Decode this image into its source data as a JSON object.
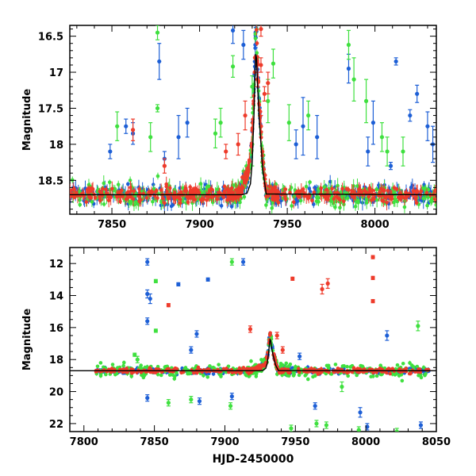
{
  "figure": {
    "background": "#ffffff",
    "series_colors": {
      "blue": "#1d5fd6",
      "green": "#3fe03f",
      "red": "#ee3b2b",
      "model": "#000000"
    }
  },
  "chart_data": [
    {
      "type": "scatter",
      "panel": "top",
      "title": "",
      "xlabel": "",
      "ylabel": "Magnitude",
      "xlim": [
        7826,
        8035
      ],
      "ylim": [
        18.97,
        16.35
      ],
      "y_inverted": true,
      "xticks": [
        7850,
        7900,
        7950,
        8000
      ],
      "yticks": [
        16.5,
        17,
        17.5,
        18,
        18.5
      ],
      "ytick_labels": [
        "16.5",
        "17",
        "17.5",
        "18",
        "18.5"
      ],
      "grid": false,
      "legend": "none",
      "baseline_magnitude": 18.7,
      "series": [
        {
          "color": "blue",
          "baseline_range": [
            7826,
            8035
          ],
          "scatter": 0.13,
          "outliers": [
            [
              7877,
              16.85,
              0.25
            ],
            [
              7919,
              16.42,
              0.18
            ],
            [
              7925,
              16.62,
              0.2
            ],
            [
              7932,
              16.52,
              0.14
            ],
            [
              7985,
              16.95,
              0.2
            ],
            [
              8012,
              16.85,
              0.05
            ],
            [
              8020,
              17.6,
              0.08
            ],
            [
              8024,
              17.3,
              0.12
            ],
            [
              8030,
              17.75,
              0.2
            ],
            [
              8033,
              18.0,
              0.25
            ],
            [
              7858,
              17.75,
              0.1
            ],
            [
              7862,
              17.85,
              0.15
            ],
            [
              7888,
              17.9,
              0.3
            ],
            [
              7893,
              17.7,
              0.2
            ],
            [
              7959,
              17.75,
              0.4
            ],
            [
              7967,
              17.9,
              0.3
            ],
            [
              7999,
              17.7,
              0.3
            ],
            [
              7955,
              18.0,
              0.2
            ],
            [
              7849,
              18.1,
              0.1
            ],
            [
              7880,
              18.2,
              0.1
            ],
            [
              7996,
              18.1,
              0.2
            ],
            [
              8009,
              18.3,
              0.05
            ]
          ]
        },
        {
          "color": "green",
          "baseline_range": [
            7826,
            8035
          ],
          "scatter": 0.15,
          "outliers": [
            [
              7876,
              16.45,
              0.1
            ],
            [
              7919,
              16.92,
              0.15
            ],
            [
              7930,
              17.2,
              0.15
            ],
            [
              7942,
              16.88,
              0.2
            ],
            [
              7939,
              17.4,
              0.3
            ],
            [
              7985,
              16.62,
              0.2
            ],
            [
              7988,
              17.1,
              0.3
            ],
            [
              7995,
              17.4,
              0.3
            ],
            [
              7876,
              17.5,
              0.05
            ],
            [
              7853,
              17.75,
              0.2
            ],
            [
              7872,
              17.9,
              0.2
            ],
            [
              7930,
              18.0,
              0.3
            ],
            [
              7951,
              17.7,
              0.25
            ],
            [
              7962,
              17.6,
              0.2
            ],
            [
              7912,
              17.7,
              0.2
            ],
            [
              7909,
              17.85,
              0.2
            ],
            [
              8007,
              18.1,
              0.2
            ],
            [
              8016,
              18.1,
              0.2
            ],
            [
              8004,
              17.9,
              0.2
            ]
          ]
        },
        {
          "color": "red",
          "baseline_range": [
            7826,
            8035
          ],
          "scatter": 0.1,
          "outliers": [
            [
              7935,
              16.4,
              0.1
            ],
            [
              7935,
              16.9,
              0.1
            ],
            [
              7937,
              17.3,
              0.1
            ],
            [
              7939,
              17.15,
              0.15
            ],
            [
              7862,
              17.8,
              0.15
            ],
            [
              7935,
              17.75,
              0.15
            ],
            [
              7926,
              17.6,
              0.2
            ],
            [
              7933,
              17.1,
              0.1
            ],
            [
              7922,
              18.0,
              0.15
            ],
            [
              7915,
              18.1,
              0.1
            ],
            [
              7880,
              18.3,
              0.1
            ]
          ]
        }
      ],
      "model_curve": {
        "color": "model",
        "x": [
          7826,
          7920,
          7924,
          7927,
          7929,
          7930,
          7931,
          7931.6,
          7932.2,
          7933,
          7934,
          7936,
          7938,
          8035
        ],
        "y": [
          18.7,
          18.7,
          18.7,
          18.68,
          18.55,
          18.25,
          17.6,
          17.05,
          16.6,
          17.15,
          17.65,
          18.35,
          18.69,
          18.7
        ],
        "dip_start": 7922,
        "dip_end": 7930.5
      }
    },
    {
      "type": "scatter",
      "panel": "bottom",
      "title": "",
      "xlabel": "HJD-2450000",
      "ylabel": "Magnitude",
      "xlim": [
        7790,
        8050
      ],
      "ylim": [
        22.5,
        11.0
      ],
      "y_inverted": true,
      "xticks": [
        7800,
        7850,
        7900,
        7950,
        8000,
        8050
      ],
      "xtick_labels": [
        "7800",
        "7850",
        "7900",
        "7950",
        "8000",
        "8050"
      ],
      "yticks": [
        12,
        14,
        16,
        18,
        20,
        22
      ],
      "ytick_labels": [
        "12",
        "14",
        "16",
        "18",
        "20",
        "22"
      ],
      "grid": false,
      "legend": "none",
      "baseline_magnitude": 18.7,
      "series": [
        {
          "color": "blue",
          "baseline_range": [
            7808,
            8045
          ],
          "scatter": 0.2,
          "outliers": [
            [
              7845,
              11.9,
              0.2
            ],
            [
              7845,
              13.9,
              0.25
            ],
            [
              7847,
              14.2,
              0.3
            ],
            [
              7845,
              15.6,
              0.2
            ],
            [
              7867,
              13.3,
              0.1
            ],
            [
              7888,
              13.0,
              0.1
            ],
            [
              7913,
              11.9,
              0.2
            ],
            [
              7876,
              17.4,
              0.2
            ],
            [
              7880,
              16.4,
              0.2
            ],
            [
              7953,
              17.8,
              0.2
            ],
            [
              8015,
              16.5,
              0.3
            ],
            [
              8039,
              22.1,
              0.2
            ],
            [
              8001,
              22.2,
              0.2
            ],
            [
              7996,
              21.3,
              0.3
            ],
            [
              7882,
              20.6,
              0.2
            ],
            [
              7845,
              20.4,
              0.2
            ],
            [
              7905,
              20.3,
              0.2
            ],
            [
              7964,
              20.9,
              0.2
            ]
          ]
        },
        {
          "color": "green",
          "baseline_range": [
            7808,
            8045
          ],
          "scatter": 0.4,
          "outliers": [
            [
              7905,
              11.9,
              0.2
            ],
            [
              7851,
              13.1,
              0.1
            ],
            [
              7851,
              16.2,
              0.1
            ],
            [
              7836,
              17.7,
              0.1
            ],
            [
              7838,
              18.0,
              0.2
            ],
            [
              7972,
              22.1,
              0.2
            ],
            [
              7965,
              22.0,
              0.2
            ],
            [
              7995,
              22.4,
              0.2
            ],
            [
              8022,
              22.5,
              0.2
            ],
            [
              8037,
              15.9,
              0.3
            ],
            [
              7983,
              19.7,
              0.3
            ],
            [
              7904,
              20.9,
              0.2
            ],
            [
              7876,
              20.5,
              0.2
            ],
            [
              7860,
              20.7,
              0.2
            ],
            [
              7947,
              22.3,
              0.2
            ]
          ]
        },
        {
          "color": "red",
          "baseline_range": [
            7808,
            8045
          ],
          "scatter": 0.15,
          "outliers": [
            [
              7948,
              12.95,
              0.1
            ],
            [
              7860,
              14.6,
              0.1
            ],
            [
              7969,
              13.6,
              0.3
            ],
            [
              7973,
              13.25,
              0.3
            ],
            [
              8005,
              11.6,
              0.1
            ],
            [
              8005,
              12.9,
              0.1
            ],
            [
              8005,
              14.35,
              0.1
            ],
            [
              7918,
              16.1,
              0.2
            ],
            [
              7937,
              16.5,
              0.2
            ],
            [
              7941,
              17.4,
              0.2
            ]
          ]
        }
      ],
      "model_curve": {
        "color": "model",
        "x": [
          7790,
          7920,
          7924,
          7927,
          7929,
          7930,
          7931,
          7931.6,
          7932.2,
          7933,
          7934,
          7936,
          7938,
          8050
        ],
        "y": [
          18.7,
          18.7,
          18.7,
          18.68,
          18.55,
          18.25,
          17.6,
          17.05,
          16.6,
          17.15,
          17.65,
          18.35,
          18.69,
          18.7
        ],
        "dip_start": 7918,
        "dip_end": 7930.5
      }
    }
  ]
}
